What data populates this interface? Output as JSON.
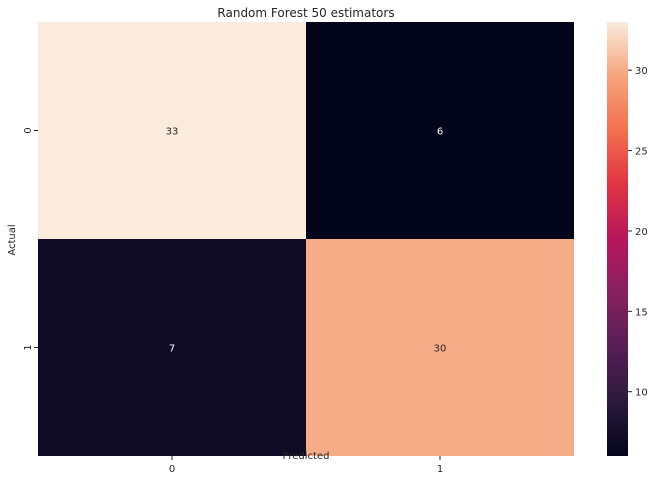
{
  "chart_data": {
    "type": "heatmap",
    "title": "Random Forest 50 estimators",
    "xlabel": "Predicted",
    "ylabel": "Actual",
    "x_categories": [
      "0",
      "1"
    ],
    "y_categories": [
      "0",
      "1"
    ],
    "values": [
      [
        33,
        6
      ],
      [
        7,
        30
      ]
    ],
    "colormap": "rocket",
    "colorbar": {
      "min": 6,
      "max": 33,
      "ticks": [
        10,
        15,
        20,
        25,
        30
      ],
      "tick_labels": [
        "10",
        "15",
        "20",
        "25",
        "30"
      ]
    }
  }
}
